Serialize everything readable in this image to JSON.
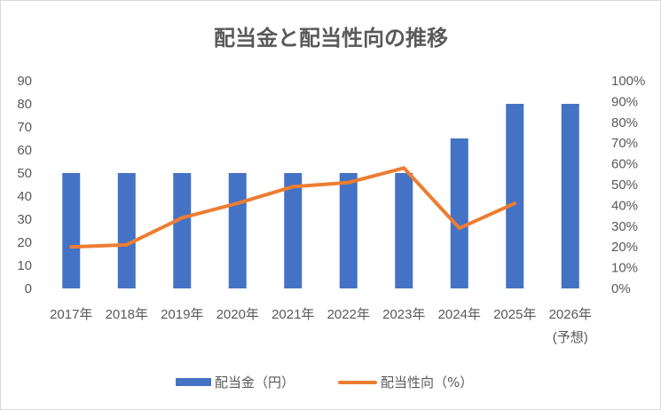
{
  "chart_data": {
    "type": "bar",
    "title": "配当金と配当性向の推移",
    "categories": [
      "2017年",
      "2018年",
      "2019年",
      "2020年",
      "2021年",
      "2022年",
      "2023年",
      "2024年",
      "2025年",
      "2026年"
    ],
    "category_sublabels": [
      "",
      "",
      "",
      "",
      "",
      "",
      "",
      "",
      "",
      "(予想)"
    ],
    "series": [
      {
        "name": "配当金（円）",
        "type": "bar",
        "axis": "left",
        "color": "#4472c4",
        "values": [
          50,
          50,
          50,
          50,
          50,
          50,
          50,
          65,
          80,
          80
        ]
      },
      {
        "name": "配当性向（%）",
        "type": "line",
        "axis": "right",
        "color": "#ed7d31",
        "values": [
          20,
          21,
          34,
          41,
          49,
          51,
          58,
          29,
          41,
          null
        ]
      }
    ],
    "y_left": {
      "min": 0,
      "max": 90,
      "step": 10,
      "tick_labels": [
        "0",
        "10",
        "20",
        "30",
        "40",
        "50",
        "60",
        "70",
        "80",
        "90"
      ]
    },
    "y_right": {
      "min": 0,
      "max": 100,
      "step": 10,
      "tick_labels": [
        "0%",
        "10%",
        "20%",
        "30%",
        "40%",
        "50%",
        "60%",
        "70%",
        "80%",
        "90%",
        "100%"
      ]
    },
    "grid": false,
    "legend": "bottom"
  }
}
